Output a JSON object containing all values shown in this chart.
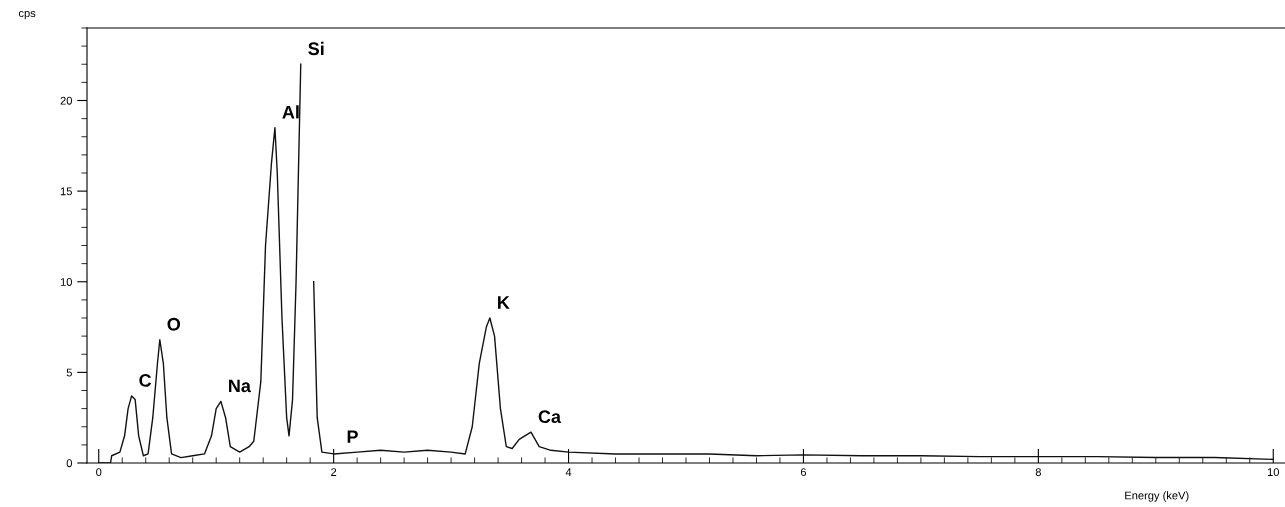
{
  "chart_data": {
    "type": "line",
    "xlabel": "Energy (keV)",
    "ylabel": "cps",
    "x": [
      0,
      0.1,
      0.11,
      0.18,
      0.22,
      0.25,
      0.28,
      0.31,
      0.34,
      0.38,
      0.42,
      0.46,
      0.5,
      0.52,
      0.55,
      0.58,
      0.62,
      0.7,
      0.8,
      0.9,
      0.96,
      1.0,
      1.04,
      1.08,
      1.12,
      1.2,
      1.28,
      1.32,
      1.38,
      1.42,
      1.47,
      1.5,
      1.52,
      1.56,
      1.6,
      1.62,
      1.65,
      1.68,
      1.72,
      1.74,
      1.8,
      1.83,
      1.86,
      1.9,
      2.0,
      2.2,
      2.4,
      2.6,
      2.8,
      3.0,
      3.12,
      3.18,
      3.24,
      3.3,
      3.33,
      3.37,
      3.42,
      3.47,
      3.52,
      3.58,
      3.68,
      3.75,
      3.85,
      4.0,
      4.4,
      4.8,
      5.2,
      5.6,
      6.0,
      6.5,
      7.0,
      7.5,
      8.0,
      8.5,
      9.0,
      9.5,
      10.0
    ],
    "series": [
      {
        "color": "#111111",
        "values": [
          0,
          0,
          0.4,
          0.6,
          1.5,
          3.0,
          3.7,
          3.5,
          1.5,
          0.4,
          0.5,
          2.5,
          5.5,
          6.8,
          5.5,
          2.5,
          0.5,
          0.3,
          0.4,
          0.5,
          1.5,
          3.0,
          3.4,
          2.5,
          0.9,
          0.6,
          0.9,
          1.2,
          4.5,
          12,
          16.5,
          18.5,
          16,
          8,
          2.5,
          1.5,
          3.5,
          10,
          22,
          null,
          null,
          10,
          2.5,
          0.6,
          0.5,
          0.6,
          0.7,
          0.6,
          0.7,
          0.6,
          0.5,
          2,
          5.5,
          7.5,
          8.0,
          7,
          3,
          0.9,
          0.8,
          1.3,
          1.7,
          0.9,
          0.7,
          0.6,
          0.5,
          0.5,
          0.5,
          0.4,
          0.45,
          0.4,
          0.4,
          0.35,
          0.35,
          0.35,
          0.3,
          0.3,
          0.2
        ]
      }
    ],
    "xlim": [
      -0.1,
      10.1
    ],
    "ylim": [
      0,
      24
    ],
    "xticks": [
      0,
      2,
      4,
      6,
      8,
      10
    ],
    "yticks": [
      0,
      5,
      10,
      15,
      20
    ],
    "grid": false,
    "legend": false,
    "marker": "none",
    "line_style": "solid",
    "annotations": [
      {
        "text": "C",
        "x": 0.28,
        "y": 3.7
      },
      {
        "text": "O",
        "x": 0.52,
        "y": 6.8
      },
      {
        "text": "Na",
        "x": 1.04,
        "y": 3.4
      },
      {
        "text": "Al",
        "x": 1.5,
        "y": 18.5
      },
      {
        "text": "Si",
        "x": 1.72,
        "y": 22
      },
      {
        "text": "P",
        "x": 2.05,
        "y": 0.6
      },
      {
        "text": "K",
        "x": 3.33,
        "y": 8.0
      },
      {
        "text": "Ca",
        "x": 3.68,
        "y": 1.7
      }
    ]
  }
}
